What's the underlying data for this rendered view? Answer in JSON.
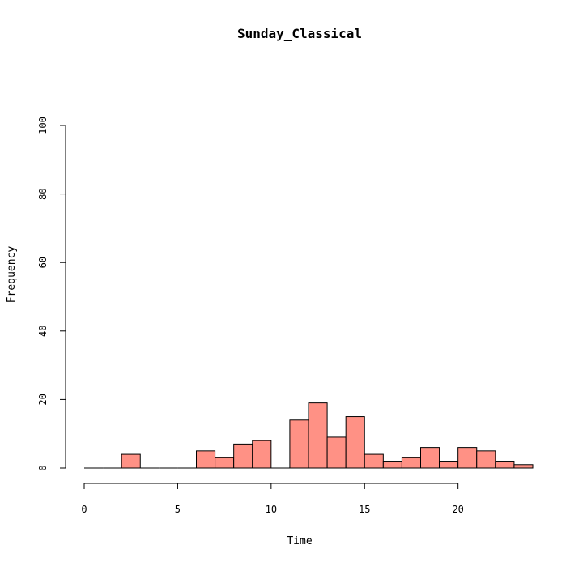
{
  "chart_data": {
    "type": "bar",
    "title": "Sunday_Classical",
    "xlabel": "Time",
    "ylabel": "Frequency",
    "xlim": [
      0,
      24
    ],
    "ylim": [
      0,
      100
    ],
    "x_ticks": [
      0,
      5,
      10,
      15,
      20
    ],
    "y_ticks": [
      0,
      20,
      40,
      60,
      80,
      100
    ],
    "bar_color": "#FF9185",
    "bins": [
      {
        "start": 0,
        "end": 1,
        "count": 0
      },
      {
        "start": 1,
        "end": 2,
        "count": 0
      },
      {
        "start": 2,
        "end": 3,
        "count": 4
      },
      {
        "start": 3,
        "end": 4,
        "count": 0
      },
      {
        "start": 4,
        "end": 5,
        "count": 0
      },
      {
        "start": 5,
        "end": 6,
        "count": 0
      },
      {
        "start": 6,
        "end": 7,
        "count": 5
      },
      {
        "start": 7,
        "end": 8,
        "count": 3
      },
      {
        "start": 8,
        "end": 9,
        "count": 7
      },
      {
        "start": 9,
        "end": 10,
        "count": 8
      },
      {
        "start": 10,
        "end": 11,
        "count": 0
      },
      {
        "start": 11,
        "end": 12,
        "count": 14
      },
      {
        "start": 12,
        "end": 13,
        "count": 19
      },
      {
        "start": 13,
        "end": 14,
        "count": 9
      },
      {
        "start": 14,
        "end": 15,
        "count": 15
      },
      {
        "start": 15,
        "end": 16,
        "count": 4
      },
      {
        "start": 16,
        "end": 17,
        "count": 2
      },
      {
        "start": 17,
        "end": 18,
        "count": 3
      },
      {
        "start": 18,
        "end": 19,
        "count": 6
      },
      {
        "start": 19,
        "end": 20,
        "count": 2
      },
      {
        "start": 20,
        "end": 21,
        "count": 6
      },
      {
        "start": 21,
        "end": 22,
        "count": 5
      },
      {
        "start": 22,
        "end": 23,
        "count": 2
      },
      {
        "start": 23,
        "end": 24,
        "count": 1
      }
    ]
  }
}
